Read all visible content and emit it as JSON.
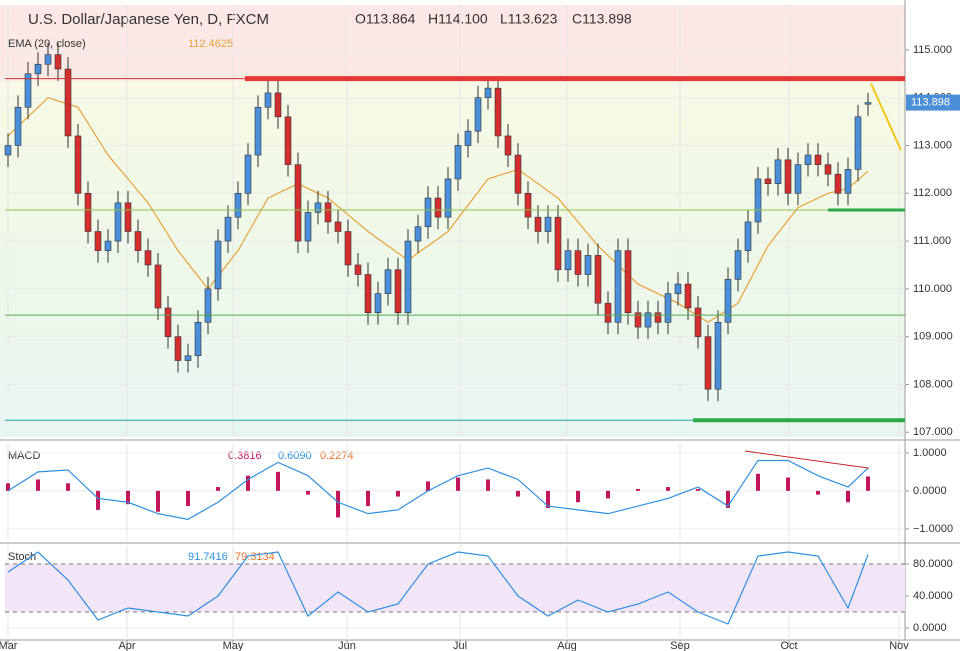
{
  "header": {
    "symbol": "U.S. Dollar/Japanese Yen, D, FXCM",
    "ohlc": [
      "O113.864",
      "H114.100",
      "L113.623",
      "C113.898"
    ]
  },
  "chart_data": [
    {
      "type": "candlestick",
      "label": "EMA (20, close)",
      "label_value": "112.4625",
      "price_tag": "113.898",
      "xlim": [
        -0.3,
        89.7
      ],
      "ylim": [
        106.9,
        115.94
      ],
      "yticks": [
        {
          "value": 107,
          "label": "107.000"
        },
        {
          "value": 108,
          "label": "108.000"
        },
        {
          "value": 109,
          "label": "109.000"
        },
        {
          "value": 110,
          "label": "110.000"
        },
        {
          "value": 111,
          "label": "111.000"
        },
        {
          "value": 112,
          "label": "112.000"
        },
        {
          "value": 113,
          "label": "113.000"
        },
        {
          "value": 114,
          "label": "114.000"
        },
        {
          "value": 115,
          "label": "115.000"
        }
      ],
      "up_color": "#4a8fd8",
      "down_color": "#d32f2f",
      "open": [
        112.8,
        113.0,
        113.8,
        114.5,
        114.7,
        114.9,
        114.6,
        113.2,
        112.0,
        111.2,
        110.8,
        111.0,
        111.8,
        111.2,
        110.8,
        110.5,
        109.6,
        109.0,
        108.5,
        108.6,
        109.3,
        110.0,
        111.0,
        111.5,
        112.0,
        112.8,
        113.8,
        114.1,
        113.6,
        112.6,
        111.0,
        111.6,
        111.8,
        111.4,
        111.2,
        110.5,
        110.3,
        109.5,
        109.9,
        110.4,
        109.5,
        111.0,
        111.3,
        111.9,
        111.5,
        112.3,
        113.0,
        113.3,
        114.0,
        114.2,
        113.2,
        112.8,
        112.0,
        111.5,
        111.2,
        111.5,
        110.4,
        110.8,
        110.3,
        110.7,
        109.7,
        109.3,
        110.8,
        109.5,
        109.2,
        109.5,
        109.3,
        109.9,
        110.1,
        109.6,
        109.0,
        107.9,
        109.3,
        110.2,
        110.8,
        111.4,
        112.3,
        112.2,
        112.7,
        112.0,
        112.6,
        112.8,
        112.6,
        112.4,
        112.0,
        112.5,
        113.864
      ],
      "high": [
        113.25,
        114.05,
        114.75,
        114.95,
        115.15,
        115.15,
        114.85,
        113.45,
        112.25,
        111.45,
        111.25,
        112.05,
        112.05,
        111.45,
        111.05,
        110.75,
        109.85,
        109.25,
        108.85,
        109.55,
        110.25,
        111.25,
        111.75,
        112.25,
        113.05,
        114.05,
        114.35,
        114.35,
        113.85,
        112.85,
        111.85,
        112.05,
        112.05,
        111.65,
        111.45,
        110.75,
        110.55,
        110.15,
        110.65,
        110.65,
        111.25,
        111.55,
        112.15,
        112.15,
        112.55,
        113.25,
        113.55,
        114.25,
        114.45,
        114.45,
        113.45,
        113.05,
        112.25,
        111.75,
        111.75,
        111.75,
        111.05,
        111.05,
        110.95,
        110.95,
        109.95,
        111.05,
        111.05,
        109.75,
        109.75,
        109.75,
        110.15,
        110.35,
        110.35,
        109.85,
        109.25,
        109.55,
        110.45,
        111.05,
        111.65,
        112.55,
        112.55,
        112.95,
        112.95,
        112.85,
        113.05,
        113.05,
        112.85,
        112.65,
        112.75,
        113.85,
        114.1
      ],
      "low": [
        112.55,
        112.75,
        113.55,
        114.25,
        114.45,
        114.35,
        112.95,
        111.75,
        110.95,
        110.55,
        110.55,
        110.75,
        110.95,
        110.55,
        110.25,
        109.35,
        108.75,
        108.25,
        108.25,
        108.35,
        109.05,
        109.75,
        110.75,
        111.25,
        111.75,
        112.55,
        113.55,
        113.35,
        112.35,
        110.75,
        110.75,
        111.35,
        111.15,
        110.95,
        110.25,
        110.05,
        109.25,
        109.25,
        109.65,
        109.25,
        109.25,
        110.75,
        111.05,
        111.25,
        111.25,
        112.05,
        112.75,
        113.05,
        113.75,
        112.95,
        112.55,
        111.75,
        111.25,
        110.95,
        110.95,
        110.15,
        110.15,
        110.05,
        110.05,
        109.45,
        109.05,
        109.05,
        109.25,
        108.95,
        108.95,
        109.05,
        109.05,
        109.65,
        109.35,
        108.75,
        107.65,
        107.65,
        109.05,
        109.95,
        110.55,
        111.15,
        111.95,
        111.95,
        111.75,
        111.75,
        112.35,
        112.35,
        112.15,
        111.75,
        111.75,
        112.25,
        113.623
      ],
      "close": [
        113.0,
        113.8,
        114.5,
        114.7,
        114.9,
        114.6,
        113.2,
        112.0,
        111.2,
        110.8,
        111.0,
        111.8,
        111.2,
        110.8,
        110.5,
        109.6,
        109.0,
        108.5,
        108.6,
        109.3,
        110.0,
        111.0,
        111.5,
        112.0,
        112.8,
        113.8,
        114.1,
        113.6,
        112.6,
        111.0,
        111.6,
        111.8,
        111.4,
        111.2,
        110.5,
        110.3,
        109.5,
        109.9,
        110.4,
        109.5,
        111.0,
        111.3,
        111.9,
        111.5,
        112.3,
        113.0,
        113.3,
        114.0,
        114.2,
        113.2,
        112.8,
        112.0,
        111.5,
        111.2,
        111.5,
        110.4,
        110.8,
        110.3,
        110.7,
        109.7,
        109.3,
        110.8,
        109.5,
        109.2,
        109.5,
        109.3,
        109.9,
        110.1,
        109.6,
        109.0,
        107.9,
        109.3,
        110.2,
        110.8,
        111.4,
        112.3,
        112.2,
        112.7,
        112.0,
        112.6,
        112.8,
        112.6,
        112.4,
        112.0,
        112.5,
        113.6,
        113.898
      ],
      "series": [
        {
          "type": "line",
          "color": "#e8a33c",
          "x": [
            0,
            4,
            7,
            10,
            14,
            17,
            20,
            23,
            26,
            29,
            32,
            36,
            40,
            44,
            48,
            51,
            55,
            59,
            63,
            67,
            70,
            73,
            76,
            79,
            82,
            84,
            86
          ],
          "values": [
            113.2,
            114.0,
            113.8,
            112.8,
            111.8,
            110.8,
            110.0,
            110.8,
            111.9,
            112.2,
            111.9,
            111.2,
            110.6,
            111.2,
            112.3,
            112.5,
            111.9,
            110.9,
            110.1,
            109.7,
            109.3,
            109.7,
            110.9,
            111.7,
            112.0,
            112.1,
            112.46
          ]
        }
      ],
      "drawings": [
        {
          "color": "#d32f2f",
          "width": 1,
          "x": [
            -0.3,
            89.7
          ],
          "y": [
            114.4,
            114.4
          ]
        },
        {
          "color": "#e53935",
          "width": 5,
          "x": [
            23.7,
            89.7
          ],
          "y": [
            114.4,
            114.4
          ]
        },
        {
          "color": "#8bc34a",
          "width": 1,
          "x": [
            -0.3,
            89.7
          ],
          "y": [
            111.65,
            111.65
          ]
        },
        {
          "color": "#2eaa4a",
          "width": 3,
          "x": [
            82,
            89.7
          ],
          "y": [
            111.65,
            111.65
          ]
        },
        {
          "color": "#4caf50",
          "width": 1,
          "x": [
            -0.3,
            89.7
          ],
          "y": [
            109.45,
            109.45
          ]
        },
        {
          "color": "#26a69a",
          "width": 1,
          "x": [
            -0.3,
            89.7
          ],
          "y": [
            107.25,
            107.25
          ]
        },
        {
          "color": "#2eaa4a",
          "width": 4,
          "x": [
            68.5,
            89.7
          ],
          "y": [
            107.25,
            107.25
          ]
        },
        {
          "color": "#f5c518",
          "width": 2,
          "x": [
            86.3,
            89.3
          ],
          "y": [
            114.3,
            112.9
          ]
        }
      ]
    },
    {
      "type": "macd",
      "label": "MACD",
      "label_values": [
        "0.3816",
        "0.6090",
        "0.2274"
      ],
      "xlim": [
        -0.3,
        89.7
      ],
      "ylim": [
        -1.32,
        1.26
      ],
      "yticks": [
        {
          "value": 1,
          "label": "1.0000"
        },
        {
          "value": 0,
          "label": "0.0000"
        },
        {
          "value": -1,
          "label": "−1.0000"
        }
      ],
      "x": [
        0,
        3,
        6,
        9,
        12,
        15,
        18,
        21,
        24,
        27,
        30,
        33,
        36,
        39,
        42,
        45,
        48,
        51,
        54,
        57,
        60,
        63,
        66,
        69,
        72,
        75,
        78,
        81,
        84,
        86
      ],
      "series": [
        {
          "type": "bar",
          "color": "#c2185b",
          "values": [
            0.2,
            0.3,
            0.2,
            -0.5,
            -0.35,
            -0.55,
            -0.4,
            0.1,
            0.4,
            0.5,
            -0.1,
            -0.7,
            -0.4,
            -0.15,
            0.25,
            0.35,
            0.3,
            -0.15,
            -0.45,
            -0.3,
            -0.2,
            0.05,
            0.1,
            0.05,
            -0.45,
            0.45,
            0.35,
            -0.1,
            -0.3,
            0.38
          ]
        },
        {
          "type": "line",
          "color": "#2f8fe0",
          "values": [
            0.0,
            0.5,
            0.55,
            -0.2,
            -0.3,
            -0.6,
            -0.75,
            -0.3,
            0.3,
            0.75,
            0.4,
            -0.3,
            -0.6,
            -0.5,
            0.0,
            0.4,
            0.6,
            0.3,
            -0.4,
            -0.5,
            -0.6,
            -0.4,
            -0.2,
            0.1,
            -0.4,
            0.8,
            0.8,
            0.4,
            0.1,
            0.6
          ]
        }
      ],
      "drawings": [
        {
          "color": "#c62828",
          "width": 1,
          "x": [
            73.7,
            86.1
          ],
          "y": [
            1.05,
            0.6
          ]
        }
      ]
    },
    {
      "type": "stoch",
      "label": "Stoch",
      "label_values": [
        "91.7416",
        "79.3134"
      ],
      "xlim": [
        -0.3,
        89.7
      ],
      "ylim": [
        -15,
        103.75
      ],
      "yticks": [
        {
          "value": 80,
          "label": "80.0000"
        },
        {
          "value": 40,
          "label": "40.0000"
        },
        {
          "value": 0,
          "label": "0.0000"
        }
      ],
      "band": [
        20,
        80
      ],
      "xticks": [
        {
          "value": 0,
          "label": "Mar"
        },
        {
          "value": 11.9,
          "label": "Apr"
        },
        {
          "value": 22.5,
          "label": "May"
        },
        {
          "value": 33.9,
          "label": "Jun"
        },
        {
          "value": 45.2,
          "label": "Jul"
        },
        {
          "value": 55.9,
          "label": "Aug"
        },
        {
          "value": 67.2,
          "label": "Sep"
        },
        {
          "value": 78.1,
          "label": "Oct"
        },
        {
          "value": 89.1,
          "label": "Nov"
        }
      ],
      "x": [
        0,
        3,
        6,
        9,
        12,
        15,
        18,
        21,
        24,
        27,
        30,
        33,
        36,
        39,
        42,
        45,
        48,
        51,
        54,
        57,
        60,
        63,
        66,
        69,
        72,
        75,
        78,
        81,
        84,
        86
      ],
      "series": [
        {
          "type": "line",
          "color": "#2f8fe0",
          "values": [
            70,
            95,
            60,
            10,
            25,
            20,
            15,
            40,
            90,
            95,
            15,
            45,
            20,
            30,
            80,
            95,
            90,
            40,
            15,
            35,
            20,
            30,
            45,
            20,
            5,
            90,
            95,
            90,
            25,
            91.7416
          ]
        }
      ]
    }
  ]
}
